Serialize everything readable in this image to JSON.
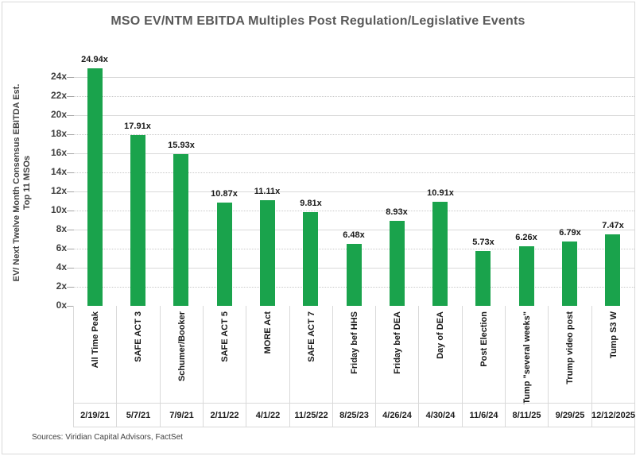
{
  "title": "MSO EV/NTM EBITDA Multiples Post Regulation/Legislative Events",
  "y_axis": {
    "label_line1": "EV/ Next Twelve Month Consensus EBITDA Est.",
    "label_line2": "Top 11 MSOs",
    "ticks": [
      "0x",
      "2x",
      "4x",
      "6x",
      "8x",
      "10x",
      "12x",
      "14x",
      "16x",
      "18x",
      "20x",
      "22x",
      "24x"
    ]
  },
  "source": "Sources: Viridian Capital Advisors, FactSet",
  "chart_data": {
    "type": "bar",
    "title": "MSO EV/NTM EBITDA Multiples Post Regulation/Legislative Events",
    "xlabel": "",
    "ylabel": "EV/ Next Twelve Month Consensus EBITDA Est. Top 11 MSOs",
    "ylim": [
      0,
      26
    ],
    "y_tick_step": 2,
    "grid": "horizontal; solid lines every 4x, dotted minor lines every 2x",
    "legend": "none",
    "bar_color": "#1aa34c",
    "categories": [
      "All Time Peak",
      "SAFE ACT 3",
      "Schumer/Booker",
      "SAFE ACT 5",
      "MORE Act",
      "SAFE ACT 7",
      "Friday bef HHS",
      "Friday bef DEA",
      "Day of DEA",
      "Post Election",
      "Tump \"several weeks\"",
      "Trump video post",
      "Tump S3 W"
    ],
    "dates": [
      "2/19/21",
      "5/7/21",
      "7/9/21",
      "2/11/22",
      "4/1/22",
      "11/25/22",
      "8/25/23",
      "4/26/24",
      "4/30/24",
      "11/6/24",
      "8/11/25",
      "9/29/25",
      "12/12/2025"
    ],
    "values": [
      24.94,
      17.91,
      15.93,
      10.87,
      11.11,
      9.81,
      6.48,
      8.93,
      10.91,
      5.73,
      6.26,
      6.79,
      7.47
    ],
    "value_labels": [
      "24.94x",
      "17.91x",
      "15.93x",
      "10.87x",
      "11.11x",
      "9.81x",
      "6.48x",
      "8.93x",
      "10.91x",
      "5.73x",
      "6.26x",
      "6.79x",
      "7.47x"
    ]
  }
}
